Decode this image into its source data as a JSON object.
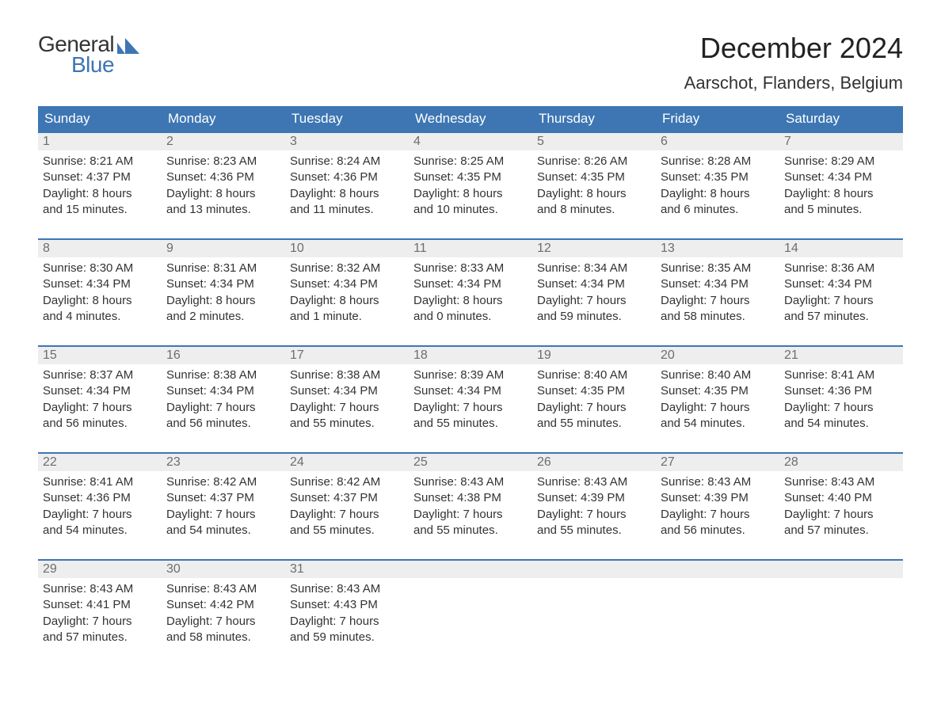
{
  "brand": {
    "text_general": "General",
    "text_blue": "Blue",
    "accent_color": "#3d76b3"
  },
  "title": "December 2024",
  "location": "Aarschot, Flanders, Belgium",
  "colors": {
    "header_bg": "#3d76b3",
    "header_text": "#ffffff",
    "row_separator": "#3d76b3",
    "daynum_bg": "#eeeeee",
    "daynum_text": "#6d6d6d",
    "body_text": "#333333",
    "page_bg": "#ffffff"
  },
  "typography": {
    "title_fontsize": 36,
    "subtitle_fontsize": 22,
    "weekday_fontsize": 17,
    "daynum_fontsize": 16,
    "body_fontsize": 15,
    "font_family": "Arial"
  },
  "weekdays": [
    "Sunday",
    "Monday",
    "Tuesday",
    "Wednesday",
    "Thursday",
    "Friday",
    "Saturday"
  ],
  "weeks": [
    [
      {
        "day": "1",
        "sunrise": "Sunrise: 8:21 AM",
        "sunset": "Sunset: 4:37 PM",
        "daylight1": "Daylight: 8 hours",
        "daylight2": "and 15 minutes."
      },
      {
        "day": "2",
        "sunrise": "Sunrise: 8:23 AM",
        "sunset": "Sunset: 4:36 PM",
        "daylight1": "Daylight: 8 hours",
        "daylight2": "and 13 minutes."
      },
      {
        "day": "3",
        "sunrise": "Sunrise: 8:24 AM",
        "sunset": "Sunset: 4:36 PM",
        "daylight1": "Daylight: 8 hours",
        "daylight2": "and 11 minutes."
      },
      {
        "day": "4",
        "sunrise": "Sunrise: 8:25 AM",
        "sunset": "Sunset: 4:35 PM",
        "daylight1": "Daylight: 8 hours",
        "daylight2": "and 10 minutes."
      },
      {
        "day": "5",
        "sunrise": "Sunrise: 8:26 AM",
        "sunset": "Sunset: 4:35 PM",
        "daylight1": "Daylight: 8 hours",
        "daylight2": "and 8 minutes."
      },
      {
        "day": "6",
        "sunrise": "Sunrise: 8:28 AM",
        "sunset": "Sunset: 4:35 PM",
        "daylight1": "Daylight: 8 hours",
        "daylight2": "and 6 minutes."
      },
      {
        "day": "7",
        "sunrise": "Sunrise: 8:29 AM",
        "sunset": "Sunset: 4:34 PM",
        "daylight1": "Daylight: 8 hours",
        "daylight2": "and 5 minutes."
      }
    ],
    [
      {
        "day": "8",
        "sunrise": "Sunrise: 8:30 AM",
        "sunset": "Sunset: 4:34 PM",
        "daylight1": "Daylight: 8 hours",
        "daylight2": "and 4 minutes."
      },
      {
        "day": "9",
        "sunrise": "Sunrise: 8:31 AM",
        "sunset": "Sunset: 4:34 PM",
        "daylight1": "Daylight: 8 hours",
        "daylight2": "and 2 minutes."
      },
      {
        "day": "10",
        "sunrise": "Sunrise: 8:32 AM",
        "sunset": "Sunset: 4:34 PM",
        "daylight1": "Daylight: 8 hours",
        "daylight2": "and 1 minute."
      },
      {
        "day": "11",
        "sunrise": "Sunrise: 8:33 AM",
        "sunset": "Sunset: 4:34 PM",
        "daylight1": "Daylight: 8 hours",
        "daylight2": "and 0 minutes."
      },
      {
        "day": "12",
        "sunrise": "Sunrise: 8:34 AM",
        "sunset": "Sunset: 4:34 PM",
        "daylight1": "Daylight: 7 hours",
        "daylight2": "and 59 minutes."
      },
      {
        "day": "13",
        "sunrise": "Sunrise: 8:35 AM",
        "sunset": "Sunset: 4:34 PM",
        "daylight1": "Daylight: 7 hours",
        "daylight2": "and 58 minutes."
      },
      {
        "day": "14",
        "sunrise": "Sunrise: 8:36 AM",
        "sunset": "Sunset: 4:34 PM",
        "daylight1": "Daylight: 7 hours",
        "daylight2": "and 57 minutes."
      }
    ],
    [
      {
        "day": "15",
        "sunrise": "Sunrise: 8:37 AM",
        "sunset": "Sunset: 4:34 PM",
        "daylight1": "Daylight: 7 hours",
        "daylight2": "and 56 minutes."
      },
      {
        "day": "16",
        "sunrise": "Sunrise: 8:38 AM",
        "sunset": "Sunset: 4:34 PM",
        "daylight1": "Daylight: 7 hours",
        "daylight2": "and 56 minutes."
      },
      {
        "day": "17",
        "sunrise": "Sunrise: 8:38 AM",
        "sunset": "Sunset: 4:34 PM",
        "daylight1": "Daylight: 7 hours",
        "daylight2": "and 55 minutes."
      },
      {
        "day": "18",
        "sunrise": "Sunrise: 8:39 AM",
        "sunset": "Sunset: 4:34 PM",
        "daylight1": "Daylight: 7 hours",
        "daylight2": "and 55 minutes."
      },
      {
        "day": "19",
        "sunrise": "Sunrise: 8:40 AM",
        "sunset": "Sunset: 4:35 PM",
        "daylight1": "Daylight: 7 hours",
        "daylight2": "and 55 minutes."
      },
      {
        "day": "20",
        "sunrise": "Sunrise: 8:40 AM",
        "sunset": "Sunset: 4:35 PM",
        "daylight1": "Daylight: 7 hours",
        "daylight2": "and 54 minutes."
      },
      {
        "day": "21",
        "sunrise": "Sunrise: 8:41 AM",
        "sunset": "Sunset: 4:36 PM",
        "daylight1": "Daylight: 7 hours",
        "daylight2": "and 54 minutes."
      }
    ],
    [
      {
        "day": "22",
        "sunrise": "Sunrise: 8:41 AM",
        "sunset": "Sunset: 4:36 PM",
        "daylight1": "Daylight: 7 hours",
        "daylight2": "and 54 minutes."
      },
      {
        "day": "23",
        "sunrise": "Sunrise: 8:42 AM",
        "sunset": "Sunset: 4:37 PM",
        "daylight1": "Daylight: 7 hours",
        "daylight2": "and 54 minutes."
      },
      {
        "day": "24",
        "sunrise": "Sunrise: 8:42 AM",
        "sunset": "Sunset: 4:37 PM",
        "daylight1": "Daylight: 7 hours",
        "daylight2": "and 55 minutes."
      },
      {
        "day": "25",
        "sunrise": "Sunrise: 8:43 AM",
        "sunset": "Sunset: 4:38 PM",
        "daylight1": "Daylight: 7 hours",
        "daylight2": "and 55 minutes."
      },
      {
        "day": "26",
        "sunrise": "Sunrise: 8:43 AM",
        "sunset": "Sunset: 4:39 PM",
        "daylight1": "Daylight: 7 hours",
        "daylight2": "and 55 minutes."
      },
      {
        "day": "27",
        "sunrise": "Sunrise: 8:43 AM",
        "sunset": "Sunset: 4:39 PM",
        "daylight1": "Daylight: 7 hours",
        "daylight2": "and 56 minutes."
      },
      {
        "day": "28",
        "sunrise": "Sunrise: 8:43 AM",
        "sunset": "Sunset: 4:40 PM",
        "daylight1": "Daylight: 7 hours",
        "daylight2": "and 57 minutes."
      }
    ],
    [
      {
        "day": "29",
        "sunrise": "Sunrise: 8:43 AM",
        "sunset": "Sunset: 4:41 PM",
        "daylight1": "Daylight: 7 hours",
        "daylight2": "and 57 minutes."
      },
      {
        "day": "30",
        "sunrise": "Sunrise: 8:43 AM",
        "sunset": "Sunset: 4:42 PM",
        "daylight1": "Daylight: 7 hours",
        "daylight2": "and 58 minutes."
      },
      {
        "day": "31",
        "sunrise": "Sunrise: 8:43 AM",
        "sunset": "Sunset: 4:43 PM",
        "daylight1": "Daylight: 7 hours",
        "daylight2": "and 59 minutes."
      },
      {
        "day": "",
        "sunrise": "",
        "sunset": "",
        "daylight1": "",
        "daylight2": ""
      },
      {
        "day": "",
        "sunrise": "",
        "sunset": "",
        "daylight1": "",
        "daylight2": ""
      },
      {
        "day": "",
        "sunrise": "",
        "sunset": "",
        "daylight1": "",
        "daylight2": ""
      },
      {
        "day": "",
        "sunrise": "",
        "sunset": "",
        "daylight1": "",
        "daylight2": ""
      }
    ]
  ]
}
